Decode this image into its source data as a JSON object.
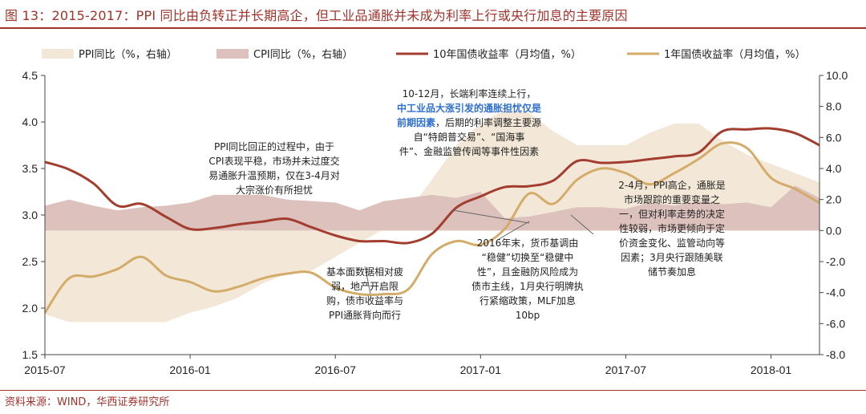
{
  "title": "图 13：2015-2017：PPI 同比由负转正并长期高企，但工业品通胀并未成为利率上行或央行加息的主要原因",
  "source": "资料来源：WIND，华西证券研究所",
  "colors": {
    "ppi_area": "#f3e8d8",
    "cpi_area": "#dcc1bd",
    "ten_year": "#a23d2f",
    "one_year": "#d4ac6a",
    "title": "#a0332b"
  },
  "annotations": [
    {
      "id": "a1",
      "lines": [
        "PPI同比回正的过程中，由于",
        "CPI表现平稳，市场并未过度交",
        "易通胀升温预期，仅在3-4月对",
        "大宗涨价有所担忧"
      ]
    },
    {
      "id": "a2",
      "lines": [
        "10-12月，长端利率连续上行，",
        "中工业品大涨引发的通胀担忧仅是",
        "前期因素，后期的利率调整主要源",
        "自“特朗普交易”、“国海事",
        "件”、金融监管传闻等事件性因素"
      ],
      "highlight": "其中工业品大涨引发的通胀担忧仅是前期因素"
    },
    {
      "id": "a3",
      "lines": [
        "基本面数据相对疲",
        "弱，地产开启限",
        "购，债市收益率与",
        "PPI通胀背向而行"
      ]
    },
    {
      "id": "a4",
      "lines": [
        "2016年末，货币基调由",
        "“稳健”切换至“稳健中",
        "性”，且金融防风险成为",
        "债市主线，1月央行明牌执",
        "行紧缩政策，MLF加息",
        "10bp"
      ]
    },
    {
      "id": "a5",
      "lines": [
        "2-4月，PPI高企，通胀是",
        "市场跟踪的重要变量之",
        "一，但对利率走势的决定",
        "性较弱，市场更倾向于定",
        "价资金变化、监管动向等",
        "因素；3月央行跟随美联",
        "储节奏加息"
      ]
    }
  ],
  "chart_data": {
    "type": "line",
    "legend": [
      "PPI同比（%，右轴）",
      "CPI同比（%，右轴）",
      "10年国债收益率（月均值，%）",
      "1年国债收益率（月均值，%）"
    ],
    "legend_position": "top",
    "x_ticks": [
      "2015-07",
      "2016-01",
      "2016-07",
      "2017-01",
      "2017-07",
      "2018-01"
    ],
    "x_range": [
      "2015-07",
      "2018-03"
    ],
    "y_left": {
      "min": 1.5,
      "max": 4.5,
      "ticks": [
        "1.5",
        "2.0",
        "2.5",
        "3.0",
        "3.5",
        "4.0",
        "4.5"
      ]
    },
    "y_right": {
      "min": -8.0,
      "max": 10.0,
      "ticks": [
        "-8.0",
        "-6.0",
        "-4.0",
        "-2.0",
        "0.0",
        "2.0",
        "4.0",
        "6.0",
        "8.0",
        "10.0"
      ]
    },
    "grid": false,
    "series": [
      {
        "name": "PPI同比（%，右轴）",
        "type": "area",
        "axis": "right",
        "x": [
          2015.5,
          2015.583,
          2015.667,
          2015.75,
          2015.833,
          2015.917,
          2016.0,
          2016.083,
          2016.167,
          2016.25,
          2016.333,
          2016.417,
          2016.5,
          2016.583,
          2016.667,
          2016.75,
          2016.833,
          2016.917,
          2017.0,
          2017.083,
          2017.167,
          2017.25,
          2017.333,
          2017.417,
          2017.5,
          2017.583,
          2017.667,
          2017.75,
          2017.833,
          2017.917,
          2018.0,
          2018.083,
          2018.167
        ],
        "values": [
          -5.4,
          -5.9,
          -5.9,
          -5.9,
          -5.9,
          -5.9,
          -5.3,
          -4.9,
          -4.3,
          -3.4,
          -2.8,
          -2.6,
          -1.7,
          -0.8,
          0.1,
          1.2,
          3.3,
          5.5,
          6.9,
          7.8,
          7.6,
          6.4,
          5.5,
          5.5,
          5.5,
          6.3,
          6.9,
          6.9,
          5.8,
          4.9,
          4.3,
          3.7,
          3.1
        ]
      },
      {
        "name": "CPI同比（%，右轴）",
        "type": "area",
        "axis": "right",
        "x": [
          2015.5,
          2015.583,
          2015.667,
          2015.75,
          2015.833,
          2015.917,
          2016.0,
          2016.083,
          2016.167,
          2016.25,
          2016.333,
          2016.417,
          2016.5,
          2016.583,
          2016.667,
          2016.75,
          2016.833,
          2016.917,
          2017.0,
          2017.083,
          2017.167,
          2017.25,
          2017.333,
          2017.417,
          2017.5,
          2017.583,
          2017.667,
          2017.75,
          2017.833,
          2017.917,
          2018.0,
          2018.083,
          2018.167
        ],
        "values": [
          1.6,
          2.0,
          1.6,
          1.3,
          1.5,
          1.6,
          1.8,
          2.3,
          2.3,
          2.3,
          2.0,
          1.9,
          1.8,
          1.3,
          1.9,
          2.1,
          2.3,
          2.1,
          2.5,
          0.8,
          0.9,
          1.2,
          1.5,
          1.5,
          1.4,
          1.8,
          1.6,
          1.9,
          1.7,
          1.8,
          1.5,
          2.9,
          2.1
        ]
      },
      {
        "name": "10年国债收益率（月均值，%）",
        "type": "line",
        "axis": "left",
        "x": [
          2015.5,
          2015.583,
          2015.667,
          2015.75,
          2015.833,
          2015.917,
          2016.0,
          2016.083,
          2016.167,
          2016.25,
          2016.333,
          2016.417,
          2016.5,
          2016.583,
          2016.667,
          2016.75,
          2016.833,
          2016.917,
          2017.0,
          2017.083,
          2017.167,
          2017.25,
          2017.333,
          2017.417,
          2017.5,
          2017.583,
          2017.667,
          2017.75,
          2017.833,
          2017.917,
          2018.0,
          2018.083,
          2018.167
        ],
        "values": [
          3.57,
          3.49,
          3.34,
          3.1,
          3.12,
          2.98,
          2.85,
          2.86,
          2.9,
          2.93,
          2.96,
          2.87,
          2.78,
          2.72,
          2.72,
          2.7,
          2.8,
          3.08,
          3.2,
          3.3,
          3.31,
          3.37,
          3.58,
          3.56,
          3.57,
          3.6,
          3.63,
          3.67,
          3.9,
          3.92,
          3.93,
          3.88,
          3.75
        ]
      },
      {
        "name": "1年国债收益率（月均值，%）",
        "type": "line",
        "axis": "left",
        "x": [
          2015.5,
          2015.583,
          2015.667,
          2015.75,
          2015.833,
          2015.917,
          2016.0,
          2016.083,
          2016.167,
          2016.25,
          2016.333,
          2016.417,
          2016.5,
          2016.583,
          2016.667,
          2016.75,
          2016.833,
          2016.917,
          2017.0,
          2017.083,
          2017.167,
          2017.25,
          2017.333,
          2017.417,
          2017.5,
          2017.583,
          2017.667,
          2017.75,
          2017.833,
          2017.917,
          2018.0,
          2018.083,
          2018.167
        ],
        "values": [
          1.95,
          2.32,
          2.34,
          2.42,
          2.55,
          2.35,
          2.28,
          2.18,
          2.23,
          2.32,
          2.37,
          2.38,
          2.22,
          2.15,
          2.15,
          2.2,
          2.58,
          2.72,
          2.68,
          2.85,
          3.23,
          3.12,
          3.38,
          3.5,
          3.45,
          3.33,
          3.45,
          3.6,
          3.77,
          3.72,
          3.4,
          3.28,
          3.13
        ]
      }
    ]
  }
}
